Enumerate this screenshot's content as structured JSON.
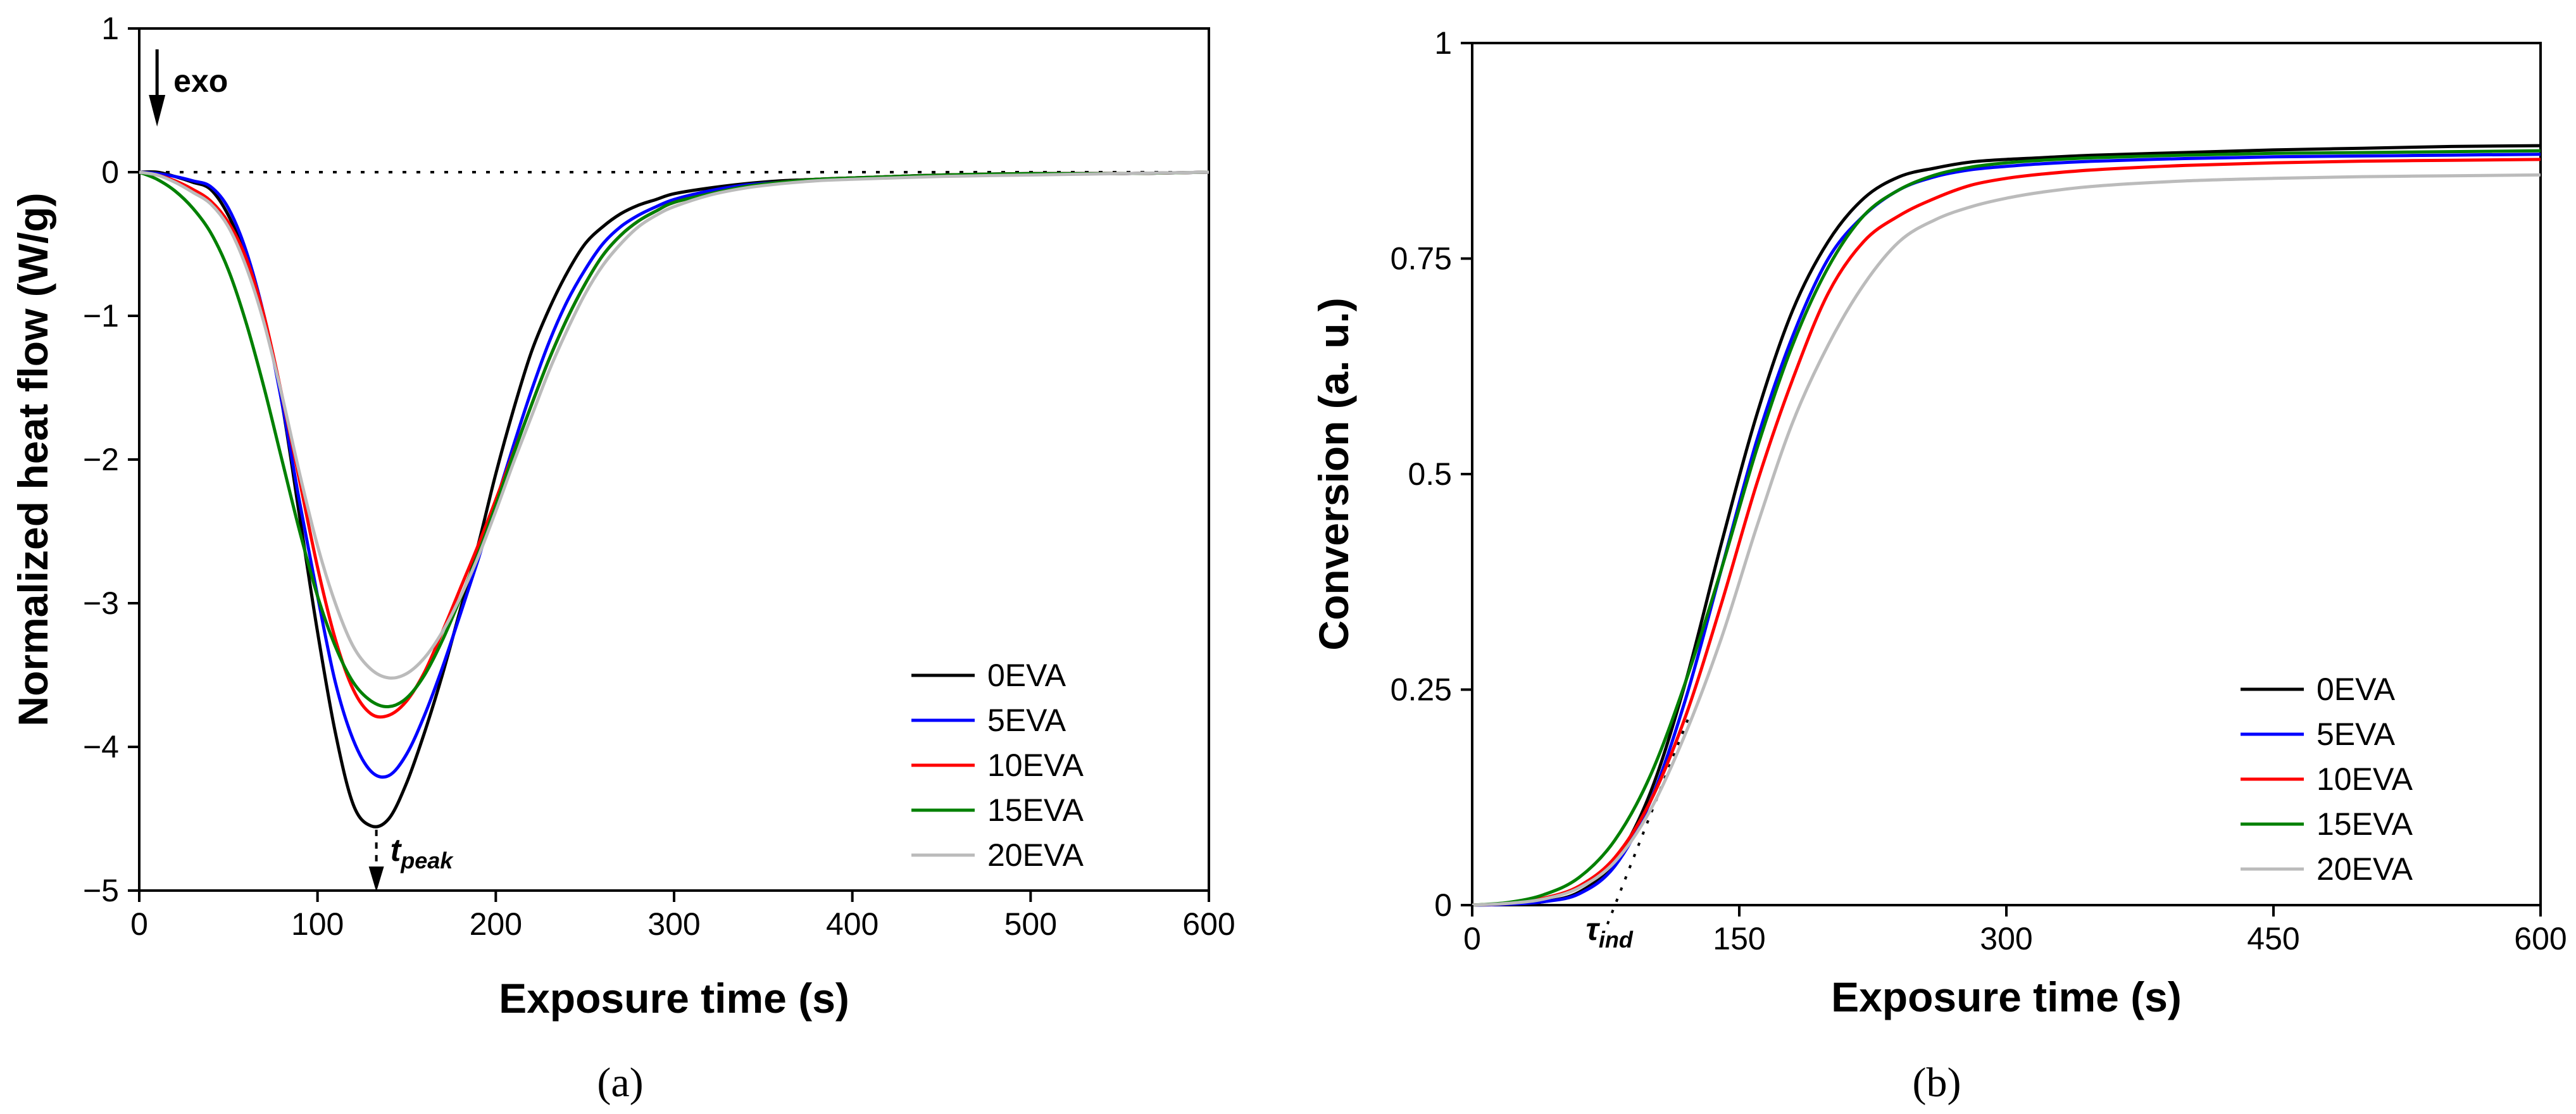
{
  "chart_data": [
    {
      "id": "a",
      "type": "line",
      "panel_label": "(a)",
      "xlabel": "Exposure time (s)",
      "ylabel": "Normalized heat flow (W/g)",
      "xlim": [
        0,
        600
      ],
      "ylim": [
        -5,
        1
      ],
      "xticks": [
        "0",
        "100",
        "200",
        "300",
        "400",
        "500",
        "600"
      ],
      "yticks": [
        "−5",
        "−4",
        "−3",
        "−2",
        "−1",
        "0",
        "1"
      ],
      "legend_position": "bottom-right",
      "annotations": {
        "exo": "exo",
        "tpeak_main": "t",
        "tpeak_sub": "peak",
        "tpeak_x": 133,
        "zero_reference_line": 0
      },
      "series": [
        {
          "name": "0EVA",
          "color": "#000000",
          "x": [
            0,
            10,
            20,
            30,
            40,
            50,
            60,
            70,
            80,
            90,
            100,
            110,
            120,
            130,
            140,
            150,
            160,
            170,
            180,
            190,
            200,
            210,
            220,
            230,
            240,
            250,
            260,
            270,
            280,
            290,
            300,
            320,
            340,
            360,
            380,
            400,
            450,
            500,
            550,
            600
          ],
          "y": [
            0,
            0.0,
            -0.03,
            -0.07,
            -0.12,
            -0.3,
            -0.6,
            -1.0,
            -1.6,
            -2.4,
            -3.2,
            -3.9,
            -4.4,
            -4.55,
            -4.5,
            -4.25,
            -3.9,
            -3.5,
            -3.05,
            -2.6,
            -2.1,
            -1.65,
            -1.25,
            -0.95,
            -0.7,
            -0.5,
            -0.38,
            -0.29,
            -0.23,
            -0.19,
            -0.15,
            -0.11,
            -0.08,
            -0.06,
            -0.05,
            -0.04,
            -0.02,
            -0.01,
            -0.01,
            0
          ]
        },
        {
          "name": "5EVA",
          "color": "#0000ff",
          "x": [
            0,
            10,
            20,
            30,
            40,
            50,
            60,
            70,
            80,
            90,
            100,
            110,
            120,
            130,
            140,
            150,
            160,
            170,
            180,
            190,
            200,
            210,
            220,
            230,
            240,
            250,
            260,
            270,
            280,
            290,
            300,
            320,
            340,
            360,
            380,
            400,
            450,
            500,
            550,
            600
          ],
          "y": [
            0,
            -0.01,
            -0.03,
            -0.06,
            -0.1,
            -0.25,
            -0.55,
            -1.0,
            -1.6,
            -2.3,
            -2.95,
            -3.55,
            -3.95,
            -4.17,
            -4.2,
            -4.05,
            -3.78,
            -3.45,
            -3.08,
            -2.7,
            -2.3,
            -1.9,
            -1.52,
            -1.18,
            -0.9,
            -0.68,
            -0.5,
            -0.38,
            -0.3,
            -0.24,
            -0.19,
            -0.13,
            -0.09,
            -0.07,
            -0.05,
            -0.04,
            -0.02,
            -0.01,
            -0.01,
            0
          ]
        },
        {
          "name": "10EVA",
          "color": "#ff0000",
          "x": [
            0,
            10,
            20,
            30,
            40,
            50,
            60,
            70,
            80,
            90,
            100,
            110,
            120,
            130,
            140,
            150,
            160,
            170,
            180,
            190,
            200,
            210,
            220,
            230,
            240,
            250,
            260,
            270,
            280,
            290,
            300,
            320,
            340,
            360,
            380,
            400,
            450,
            500,
            550,
            600
          ],
          "y": [
            0,
            -0.02,
            -0.06,
            -0.12,
            -0.2,
            -0.35,
            -0.6,
            -1.0,
            -1.55,
            -2.15,
            -2.75,
            -3.25,
            -3.6,
            -3.77,
            -3.78,
            -3.68,
            -3.48,
            -3.2,
            -2.9,
            -2.6,
            -2.28,
            -1.95,
            -1.62,
            -1.3,
            -1.02,
            -0.78,
            -0.58,
            -0.44,
            -0.34,
            -0.27,
            -0.21,
            -0.15,
            -0.1,
            -0.07,
            -0.05,
            -0.04,
            -0.02,
            -0.01,
            -0.01,
            0
          ]
        },
        {
          "name": "15EVA",
          "color": "#008000",
          "x": [
            0,
            10,
            20,
            30,
            40,
            50,
            60,
            70,
            80,
            90,
            100,
            110,
            120,
            130,
            140,
            150,
            160,
            170,
            180,
            190,
            200,
            210,
            220,
            230,
            240,
            250,
            260,
            270,
            280,
            290,
            300,
            320,
            340,
            360,
            380,
            400,
            450,
            500,
            550,
            600
          ],
          "y": [
            0,
            -0.05,
            -0.13,
            -0.25,
            -0.42,
            -0.68,
            -1.05,
            -1.5,
            -2.0,
            -2.5,
            -2.95,
            -3.3,
            -3.55,
            -3.68,
            -3.72,
            -3.66,
            -3.5,
            -3.26,
            -2.97,
            -2.66,
            -2.32,
            -1.96,
            -1.62,
            -1.3,
            -1.02,
            -0.78,
            -0.58,
            -0.44,
            -0.34,
            -0.27,
            -0.21,
            -0.15,
            -0.1,
            -0.07,
            -0.05,
            -0.04,
            -0.02,
            -0.01,
            -0.01,
            0
          ]
        },
        {
          "name": "20EVA",
          "color": "#bbbbbb",
          "x": [
            0,
            10,
            20,
            30,
            40,
            50,
            60,
            70,
            80,
            90,
            100,
            110,
            120,
            130,
            140,
            150,
            160,
            170,
            180,
            190,
            200,
            210,
            220,
            230,
            240,
            250,
            260,
            270,
            280,
            290,
            300,
            320,
            340,
            360,
            380,
            400,
            450,
            500,
            550,
            600
          ],
          "y": [
            0,
            -0.02,
            -0.07,
            -0.14,
            -0.22,
            -0.38,
            -0.66,
            -1.05,
            -1.55,
            -2.1,
            -2.6,
            -3.0,
            -3.3,
            -3.46,
            -3.52,
            -3.49,
            -3.38,
            -3.2,
            -2.96,
            -2.68,
            -2.36,
            -2.02,
            -1.7,
            -1.38,
            -1.1,
            -0.85,
            -0.65,
            -0.5,
            -0.38,
            -0.3,
            -0.24,
            -0.16,
            -0.11,
            -0.08,
            -0.06,
            -0.05,
            -0.03,
            -0.02,
            -0.01,
            0
          ]
        }
      ]
    },
    {
      "id": "b",
      "type": "line",
      "panel_label": "(b)",
      "xlabel": "Exposure time (s)",
      "ylabel": "Conversion (a. u.)",
      "xlim": [
        0,
        600
      ],
      "ylim": [
        0,
        1
      ],
      "xticks": [
        "0",
        "150",
        "300",
        "450",
        "600"
      ],
      "yticks": [
        "0",
        "0.25",
        "0.5",
        "0.75",
        "1"
      ],
      "legend_position": "bottom-right",
      "annotations": {
        "tau_main": "τ",
        "tau_sub": "ind",
        "tau_x": 78,
        "tangent_line": {
          "x": [
            78,
            122
          ],
          "y": [
            0,
            0.22
          ]
        }
      },
      "series": [
        {
          "name": "0EVA",
          "color": "#000000",
          "x": [
            0,
            20,
            40,
            60,
            80,
            100,
            120,
            140,
            160,
            180,
            200,
            220,
            240,
            260,
            280,
            300,
            320,
            350,
            400,
            450,
            500,
            550,
            600
          ],
          "y": [
            0,
            0.001,
            0.004,
            0.015,
            0.05,
            0.13,
            0.26,
            0.42,
            0.57,
            0.69,
            0.77,
            0.82,
            0.845,
            0.855,
            0.862,
            0.865,
            0.867,
            0.87,
            0.873,
            0.876,
            0.878,
            0.88,
            0.881
          ]
        },
        {
          "name": "5EVA",
          "color": "#0000ff",
          "x": [
            0,
            20,
            40,
            60,
            80,
            100,
            120,
            140,
            160,
            180,
            200,
            220,
            240,
            260,
            280,
            300,
            320,
            350,
            400,
            450,
            500,
            550,
            600
          ],
          "y": [
            0,
            0.001,
            0.004,
            0.013,
            0.045,
            0.12,
            0.24,
            0.39,
            0.54,
            0.66,
            0.75,
            0.8,
            0.83,
            0.845,
            0.853,
            0.857,
            0.86,
            0.863,
            0.866,
            0.868,
            0.869,
            0.87,
            0.871
          ]
        },
        {
          "name": "10EVA",
          "color": "#ff0000",
          "x": [
            0,
            20,
            40,
            60,
            80,
            100,
            120,
            140,
            160,
            180,
            200,
            220,
            240,
            260,
            280,
            300,
            320,
            350,
            400,
            450,
            500,
            550,
            600
          ],
          "y": [
            0,
            0.002,
            0.008,
            0.022,
            0.055,
            0.12,
            0.22,
            0.35,
            0.49,
            0.61,
            0.71,
            0.77,
            0.8,
            0.82,
            0.835,
            0.843,
            0.848,
            0.853,
            0.858,
            0.861,
            0.863,
            0.864,
            0.865
          ]
        },
        {
          "name": "15EVA",
          "color": "#008000",
          "x": [
            0,
            20,
            40,
            60,
            80,
            100,
            120,
            140,
            160,
            180,
            200,
            220,
            240,
            260,
            280,
            300,
            320,
            350,
            400,
            450,
            500,
            550,
            600
          ],
          "y": [
            0,
            0.003,
            0.012,
            0.032,
            0.075,
            0.15,
            0.26,
            0.39,
            0.53,
            0.65,
            0.74,
            0.8,
            0.83,
            0.847,
            0.856,
            0.861,
            0.864,
            0.867,
            0.87,
            0.872,
            0.873,
            0.874,
            0.875
          ]
        },
        {
          "name": "20EVA",
          "color": "#bbbbbb",
          "x": [
            0,
            20,
            40,
            60,
            80,
            100,
            120,
            140,
            160,
            180,
            200,
            220,
            240,
            260,
            280,
            300,
            320,
            350,
            400,
            450,
            500,
            550,
            600
          ],
          "y": [
            0,
            0.002,
            0.007,
            0.02,
            0.05,
            0.11,
            0.2,
            0.31,
            0.44,
            0.56,
            0.65,
            0.72,
            0.77,
            0.795,
            0.81,
            0.82,
            0.827,
            0.834,
            0.84,
            0.843,
            0.845,
            0.846,
            0.847
          ]
        }
      ]
    }
  ]
}
